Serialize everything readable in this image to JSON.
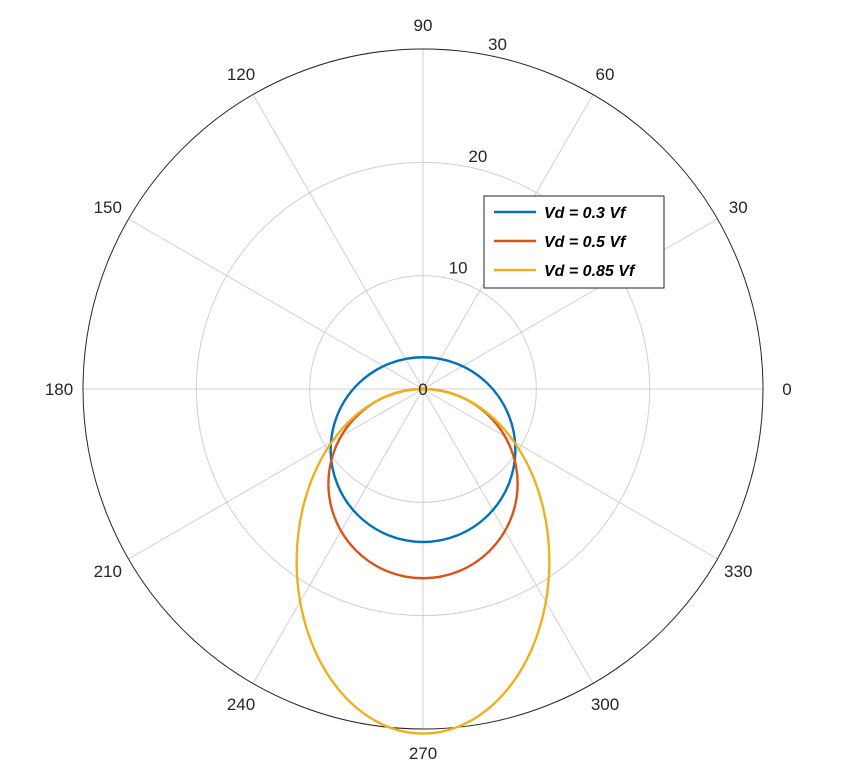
{
  "chart_data": {
    "type": "polar-line",
    "theta_ticks": [
      "0",
      "30",
      "60",
      "90",
      "120",
      "150",
      "180",
      "210",
      "240",
      "270",
      "300",
      "330"
    ],
    "theta_tick_degrees": [
      0,
      30,
      60,
      90,
      120,
      150,
      180,
      210,
      240,
      270,
      300,
      330
    ],
    "r_ticks": [
      "0",
      "10",
      "20",
      "30"
    ],
    "r_tick_values": [
      0,
      10,
      20,
      30
    ],
    "rlim": [
      0,
      30
    ],
    "r_tick_label_angle": 80,
    "grid": true,
    "legend_position": "upper-right",
    "series": [
      {
        "name": "Vd = 0.3 Vf",
        "color": "#0072BD",
        "shape": "circle",
        "center_r": 5.35,
        "center_theta": 270,
        "radius": 8.15
      },
      {
        "name": "Vd = 0.5 Vf",
        "color": "#D95319",
        "shape": "circle",
        "center_r": 8.35,
        "center_theta": 270,
        "radius": 8.35
      },
      {
        "name": "Vd = 0.85 Vf",
        "color": "#EDB120",
        "shape": "ellipse",
        "center_r": 15.2,
        "center_theta": 270,
        "semi_axis_x": 11.15,
        "semi_axis_y": 15.2
      }
    ]
  }
}
